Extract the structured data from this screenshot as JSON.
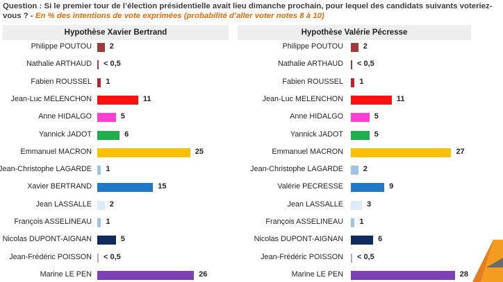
{
  "question": {
    "text": "Question : Si le premier tour de l’élection présidentielle avait lieu dimanche prochain, pour lequel des candidats suivants voteriez-vous ? -",
    "subtitle": "En % des intentions de vote exprimées (probabilité d’aller voter notes 8 à 10)"
  },
  "colors": {
    "poutou": "#9e3a3a",
    "arthaud": "#9e3a3a",
    "roussel": "#b5262e",
    "melenchon": "#ff1010",
    "hidalgo": "#ff3fd4",
    "jadot": "#1fae4b",
    "macron": "#fbbf05",
    "lagarde": "#9ec3e6",
    "lr": "#1f78c8",
    "lassalle": "#dcebf7",
    "asselineau": "#9ec3e6",
    "dupont": "#0f2a5c",
    "poisson": "#b0b0b0",
    "lepen": "#7d3fb5"
  },
  "chart_data": [
    {
      "type": "bar",
      "orientation": "horizontal",
      "title": "Hypothèse Xavier Bertrand",
      "categories": [
        "Philippe POUTOU",
        "Nathalie ARTHAUD",
        "Fabien ROUSSEL",
        "Jean-Luc MELENCHON",
        "Anne HIDALGO",
        "Yannick JADOT",
        "Emmanuel MACRON",
        "Jean-Christophe LAGARDE",
        "Xavier BERTRAND",
        "Jean LASSALLE",
        "François ASSELINEAU",
        "Nicolas DUPONT-AIGNAN",
        "Jean-Frédéric POISSON",
        "Marine LE PEN"
      ],
      "values": [
        2,
        0.3,
        1,
        11,
        5,
        6,
        25,
        1,
        15,
        2,
        1,
        5,
        0.2,
        26
      ],
      "labels": [
        "2",
        "< 0,5",
        "1",
        "11",
        "5",
        "6",
        "25",
        "1",
        "15",
        "2",
        "1",
        "5",
        "< 0,5",
        "26"
      ],
      "color_keys": [
        "poutou",
        "arthaud",
        "roussel",
        "melenchon",
        "hidalgo",
        "jadot",
        "macron",
        "lagarde",
        "lr",
        "lassalle",
        "asselineau",
        "dupont",
        "poisson",
        "lepen"
      ],
      "xlim": [
        0,
        28
      ],
      "unit": "%"
    },
    {
      "type": "bar",
      "orientation": "horizontal",
      "title": "Hypothèse Valérie Pécresse",
      "categories": [
        "Philippe POUTOU",
        "Nathalie ARTHAUD",
        "Fabien ROUSSEL",
        "Jean-Luc MELENCHON",
        "Anne HIDALGO",
        "Yannick JADOT",
        "Emmanuel MACRON",
        "Jean-Christophe LAGARDE",
        "Valérie PECRESSE",
        "Jean LASSALLE",
        "François ASSELINEAU",
        "Nicolas DUPONT-AIGNAN",
        "Jean-Frédéric POISSON",
        "Marine LE PEN"
      ],
      "values": [
        2,
        0.3,
        1,
        11,
        5,
        5,
        27,
        2,
        9,
        3,
        1,
        6,
        0.2,
        28
      ],
      "labels": [
        "2",
        "< 0,5",
        "1",
        "11",
        "5",
        "5",
        "27",
        "2",
        "9",
        "3",
        "1",
        "6",
        "< 0,5",
        "28"
      ],
      "color_keys": [
        "poutou",
        "arthaud",
        "roussel",
        "melenchon",
        "hidalgo",
        "jadot",
        "macron",
        "lagarde",
        "lr",
        "lassalle",
        "asselineau",
        "dupont",
        "poisson",
        "lepen"
      ],
      "xlim": [
        0,
        28
      ],
      "unit": "%"
    }
  ]
}
